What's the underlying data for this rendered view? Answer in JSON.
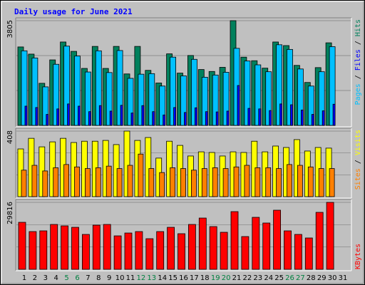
{
  "legend_separator": " / ",
  "chart_data": [
    {
      "type": "bar",
      "title": "Daily usage for June 2021",
      "ylim": [
        0,
        3805
      ],
      "yticks": [
        3805
      ],
      "series": [
        {
          "name": "Pages",
          "color": "#00c0ff",
          "values": [
            2710,
            2450,
            1400,
            2220,
            2880,
            2520,
            1940,
            2710,
            1920,
            2720,
            1710,
            1860,
            1880,
            1430,
            2480,
            1800,
            2400,
            1750,
            1830,
            1930,
            2800,
            2340,
            2200,
            1950,
            2930,
            2760,
            2050,
            1430,
            1950,
            2860,
            null
          ]
        },
        {
          "name": "Files",
          "color": "#0000ff",
          "values": [
            700,
            650,
            400,
            600,
            780,
            700,
            500,
            720,
            520,
            730,
            450,
            720,
            500,
            380,
            650,
            470,
            640,
            500,
            490,
            520,
            1450,
            620,
            600,
            540,
            780,
            750,
            560,
            400,
            530,
            770,
            null
          ]
        },
        {
          "name": "Hits",
          "color": "#00805c",
          "values": [
            2850,
            2590,
            1530,
            2380,
            3030,
            2690,
            2070,
            2870,
            2070,
            2870,
            1870,
            2870,
            2000,
            1540,
            2600,
            1900,
            2540,
            2030,
            1960,
            2110,
            3805,
            2480,
            2350,
            2080,
            3030,
            2900,
            2180,
            1560,
            2100,
            3000,
            null
          ]
        }
      ]
    },
    {
      "type": "bar",
      "ylim": [
        0,
        408
      ],
      "yticks": [
        408
      ],
      "series": [
        {
          "name": "Sites",
          "color": "#ff8000",
          "values": [
            165,
            195,
            160,
            180,
            200,
            185,
            175,
            180,
            190,
            175,
            195,
            265,
            175,
            150,
            180,
            175,
            165,
            175,
            180,
            175,
            185,
            195,
            180,
            180,
            175,
            200,
            195,
            185,
            175,
            175,
            null
          ]
        },
        {
          "name": "Visits",
          "color": "#ffff00",
          "values": [
            297,
            363,
            310,
            341,
            363,
            337,
            345,
            345,
            350,
            324,
            408,
            350,
            368,
            240,
            345,
            319,
            253,
            279,
            275,
            253,
            279,
            275,
            345,
            279,
            315,
            306,
            355,
            284,
            306,
            302,
            null
          ]
        }
      ]
    },
    {
      "type": "bar",
      "ylim": [
        0,
        29816
      ],
      "yticks": [
        29816
      ],
      "categories": [
        "1",
        "2",
        "3",
        "4",
        "5",
        "6",
        "7",
        "8",
        "9",
        "10",
        "11",
        "12",
        "13",
        "14",
        "15",
        "16",
        "17",
        "18",
        "19",
        "20",
        "21",
        "22",
        "23",
        "24",
        "25",
        "26",
        "27",
        "28",
        "29",
        "30",
        "31"
      ],
      "category_label_colors": [
        "#000000",
        "#000000",
        "#000000",
        "#000000",
        "#008040",
        "#008040",
        "#000000",
        "#000000",
        "#000000",
        "#000000",
        "#000000",
        "#008040",
        "#008040",
        "#000000",
        "#000000",
        "#000000",
        "#000000",
        "#000000",
        "#008040",
        "#008040",
        "#000000",
        "#000000",
        "#000000",
        "#000000",
        "#000000",
        "#008040",
        "#008040",
        "#000000",
        "#000000",
        "#000000",
        "#000000"
      ],
      "series": [
        {
          "name": "KBytes",
          "color": "#ff0000",
          "values": [
            20930,
            16810,
            17130,
            19980,
            19350,
            18710,
            15540,
            19660,
            19980,
            14900,
            16170,
            16810,
            13640,
            16810,
            18710,
            15860,
            19980,
            22830,
            19030,
            16490,
            25690,
            14590,
            23150,
            20620,
            26320,
            17130,
            15540,
            13960,
            25370,
            29816,
            null
          ]
        }
      ]
    }
  ]
}
